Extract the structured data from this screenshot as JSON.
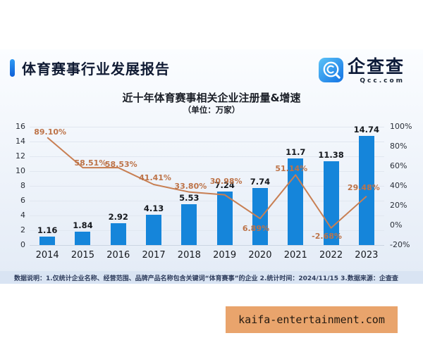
{
  "header": {
    "title": "体育赛事行业发展报告",
    "logo_text": "企查查",
    "logo_domain": "Qcc.com"
  },
  "chart_data": {
    "type": "bar",
    "title": "近十年体育赛事相关企业注册量&增速",
    "subtitle": "（单位：万家）",
    "categories": [
      "2014",
      "2015",
      "2016",
      "2017",
      "2018",
      "2019",
      "2020",
      "2021",
      "2022",
      "2023"
    ],
    "series": [
      {
        "name": "注册量",
        "type": "bar",
        "color": "#1585da",
        "values": [
          1.16,
          1.84,
          2.92,
          4.13,
          5.53,
          7.24,
          7.74,
          11.7,
          11.38,
          14.74
        ],
        "labels": [
          "1.16",
          "1.84",
          "2.92",
          "4.13",
          "5.53",
          "7.24",
          "7.74",
          "11.7",
          "11.38",
          "14.74"
        ]
      },
      {
        "name": "增速",
        "type": "line",
        "color": "#c87f53",
        "values": [
          89.1,
          58.51,
          58.53,
          41.41,
          33.8,
          30.98,
          6.89,
          51.14,
          -2.68,
          29.48
        ],
        "labels": [
          "89.10%",
          "58.51%",
          "58.53%",
          "41.41%",
          "33.80%",
          "30.98%",
          "6.89%",
          "51.14%",
          "-2.68%",
          "29.48%"
        ]
      }
    ],
    "left_axis": {
      "min": 0,
      "max": 16,
      "ticks": [
        16,
        14,
        12,
        10,
        8,
        6,
        4,
        2,
        0
      ]
    },
    "right_axis": {
      "min": -20,
      "max": 100,
      "ticks": [
        "100%",
        "80%",
        "60%",
        "40%",
        "20%",
        "0%",
        "-20%"
      ]
    },
    "grid": true,
    "legend_position": "none"
  },
  "footer": {
    "note": "数据说明：1.仅统计企业名称、经营范围、品牌产品名称包含关键词“体育赛事”的企业  2.统计时间：2024/11/15  3.数据来源：企查查"
  },
  "watermark": {
    "text": "kaifa-entertainment.com",
    "bg_color": "#e9a46c"
  }
}
